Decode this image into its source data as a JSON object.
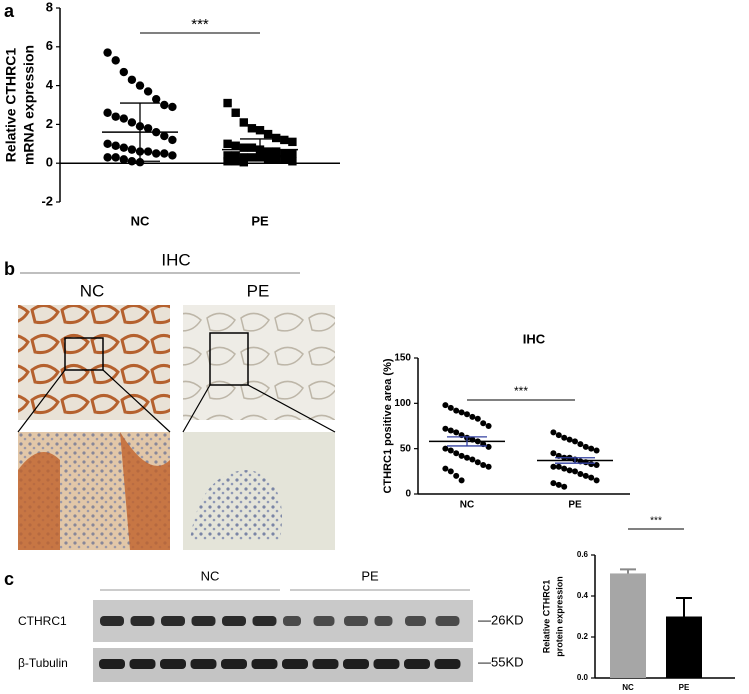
{
  "panels": [
    "a",
    "b",
    "c"
  ],
  "ihc": {
    "title": "IHC",
    "groups": [
      "NC",
      "PE"
    ]
  },
  "blot": {
    "groups": [
      "NC",
      "PE"
    ],
    "rows": [
      "CTHRC1",
      "β-Tubulin"
    ],
    "sizes": [
      "—26KD",
      "—55KD"
    ]
  },
  "chart_data": [
    {
      "type": "dot",
      "ylabel": [
        "Relative CTHRC1",
        "mRNA expression"
      ],
      "categories": [
        "NC",
        "PE"
      ],
      "markers": [
        "circle",
        "square"
      ],
      "color": "#000000",
      "groups": [
        {
          "values": [
            5.7,
            5.3,
            4.7,
            4.3,
            4.0,
            3.7,
            3.3,
            3.0,
            2.9,
            2.6,
            2.4,
            2.3,
            2.1,
            1.9,
            1.8,
            1.6,
            1.4,
            1.2,
            1.0,
            0.9,
            0.8,
            0.7,
            0.6,
            0.6,
            0.5,
            0.5,
            0.4,
            0.3,
            0.3,
            0.2,
            0.1,
            0.05
          ],
          "mean": 1.6,
          "error": 1.5
        },
        {
          "values": [
            3.1,
            2.6,
            2.1,
            1.8,
            1.7,
            1.5,
            1.3,
            1.2,
            1.1,
            1.0,
            0.9,
            0.8,
            0.8,
            0.7,
            0.6,
            0.6,
            0.5,
            0.5,
            0.4,
            0.4,
            0.3,
            0.3,
            0.3,
            0.2,
            0.2,
            0.2,
            0.1,
            0.1,
            0.1,
            0.05
          ],
          "mean": 0.7,
          "error": 0.55
        }
      ],
      "annotation": "***",
      "ylim": [
        -2,
        8
      ],
      "yticks": [
        -2,
        0,
        2,
        4,
        6,
        8
      ]
    },
    {
      "type": "dot",
      "title": "IHC",
      "ylabel": [
        "CTHRC1 positive area (%)"
      ],
      "categories": [
        "NC",
        "PE"
      ],
      "markers": [
        "circle",
        "circle"
      ],
      "color": "#000000",
      "groups": [
        {
          "values": [
            98,
            95,
            92,
            90,
            88,
            85,
            83,
            78,
            75,
            72,
            70,
            68,
            65,
            62,
            60,
            58,
            55,
            52,
            50,
            48,
            45,
            42,
            40,
            38,
            35,
            32,
            30,
            28,
            25,
            20,
            15
          ],
          "mean": 58,
          "error": 5
        },
        {
          "values": [
            68,
            65,
            62,
            60,
            58,
            55,
            52,
            50,
            48,
            45,
            42,
            40,
            40,
            38,
            36,
            35,
            33,
            32,
            30,
            30,
            28,
            26,
            25,
            22,
            20,
            18,
            15,
            12,
            10,
            8
          ],
          "mean": 37,
          "error": 3
        }
      ],
      "annotation": "***",
      "ylim": [
        0,
        150
      ],
      "yticks": [
        0,
        50,
        100,
        150
      ]
    },
    {
      "type": "bar",
      "ylabel": [
        "Relative CTHRC1",
        "protein expression"
      ],
      "categories": [
        "NC",
        "PE"
      ],
      "values": [
        0.51,
        0.3
      ],
      "errors": [
        0.02,
        0.09
      ],
      "colors": [
        "#a6a6a6",
        "#000000"
      ],
      "annotation": "***",
      "ylim": [
        0,
        0.6
      ],
      "yticks": [
        {
          "value": 0,
          "label": "0.0"
        },
        0.2,
        0.4,
        0.6
      ]
    }
  ]
}
